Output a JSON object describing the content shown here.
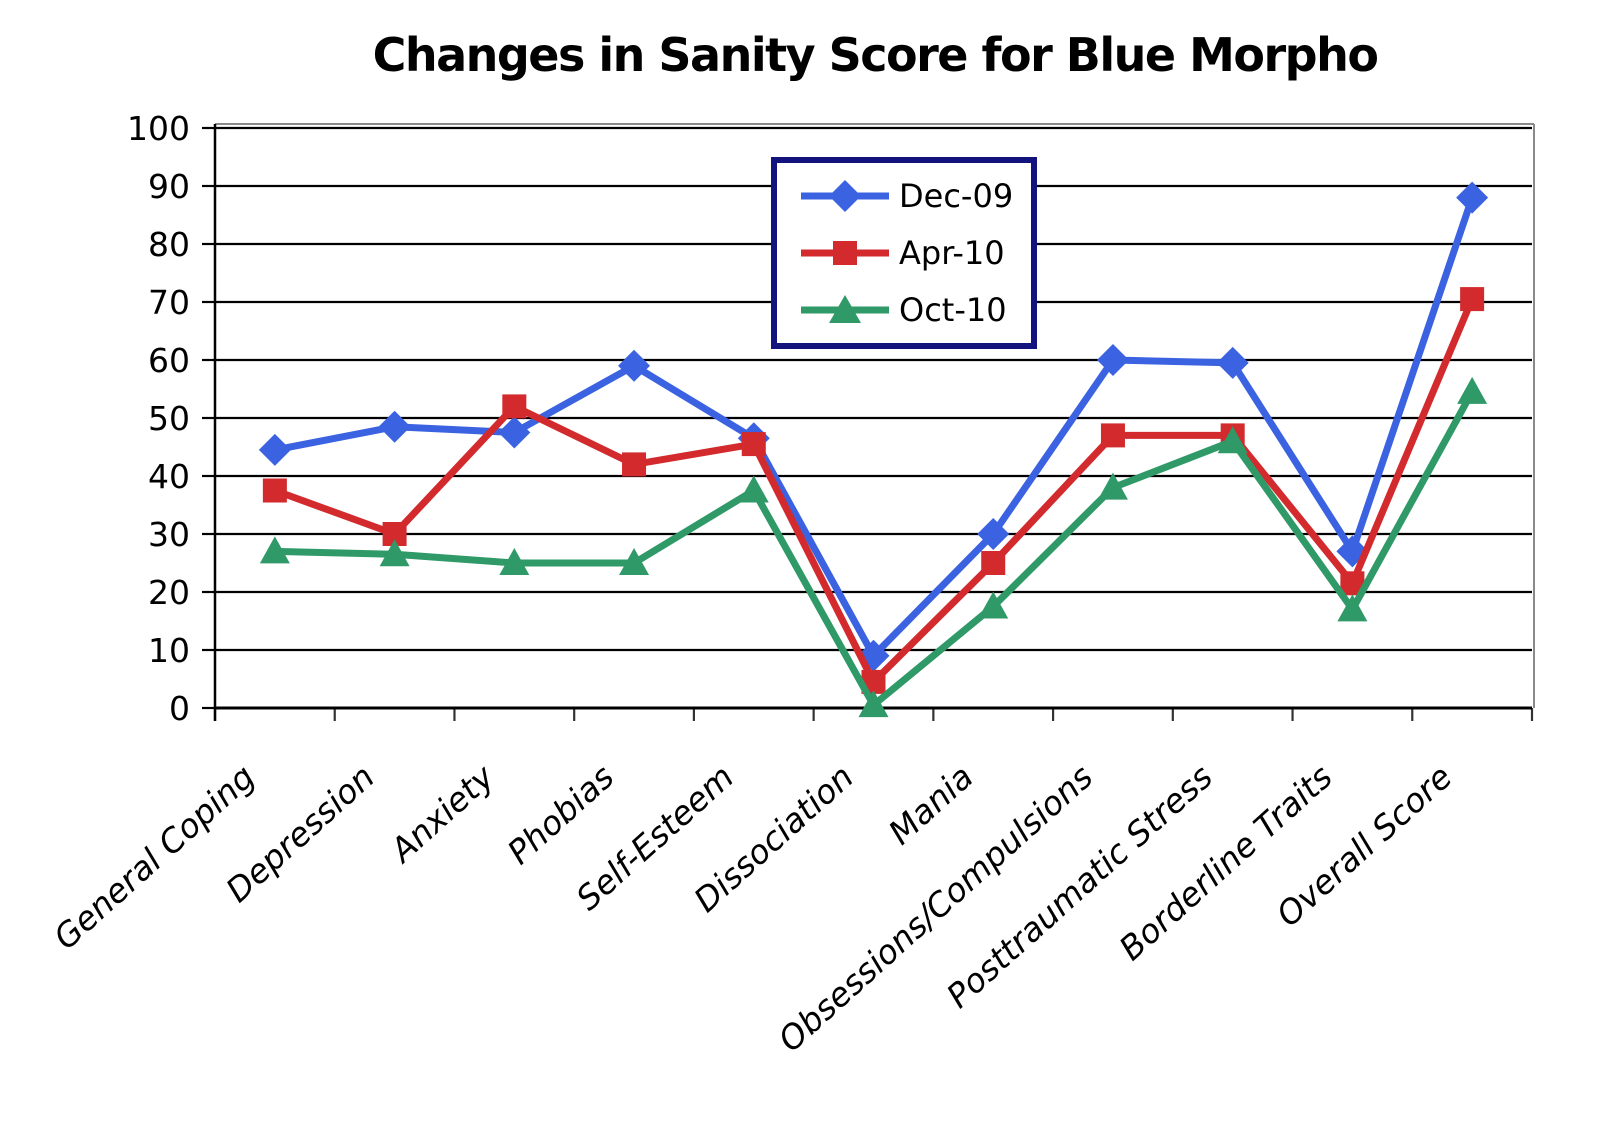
{
  "chart_data": {
    "type": "line",
    "title": "Changes in Sanity Score for Blue Morpho",
    "xlabel": "",
    "ylabel": "",
    "ylim": [
      0,
      100
    ],
    "y_ticks": [
      0,
      10,
      20,
      30,
      40,
      50,
      60,
      70,
      80,
      90,
      100
    ],
    "grid": "horizontal-black",
    "legend_position": "inside-top-center",
    "legend_border_color": "#13137D",
    "background_color": "#ffffff",
    "categories": [
      "General Coping",
      "Depression",
      "Anxiety",
      "Phobias",
      "Self-Esteem",
      "Dissociation",
      "Mania",
      "Obsessions/Compulsions",
      "Posttraumatic Stress",
      "Borderline Traits",
      "Overall Score"
    ],
    "series": [
      {
        "name": "Dec-09",
        "marker": "diamond",
        "color": "#3B63E1",
        "values": [
          44.5,
          48.5,
          47.5,
          59,
          46.5,
          9,
          30,
          60,
          59.5,
          27,
          88
        ]
      },
      {
        "name": "Apr-10",
        "marker": "square",
        "color": "#D22A2D",
        "values": [
          37.5,
          30,
          52,
          42,
          45.5,
          4.5,
          25,
          47,
          47,
          21.5,
          70.5
        ]
      },
      {
        "name": "Oct-10",
        "marker": "triangle",
        "color": "#2F9968",
        "values": [
          27,
          26.5,
          25,
          25,
          37.5,
          0.5,
          17.5,
          38,
          46,
          17,
          54.5
        ]
      }
    ]
  }
}
